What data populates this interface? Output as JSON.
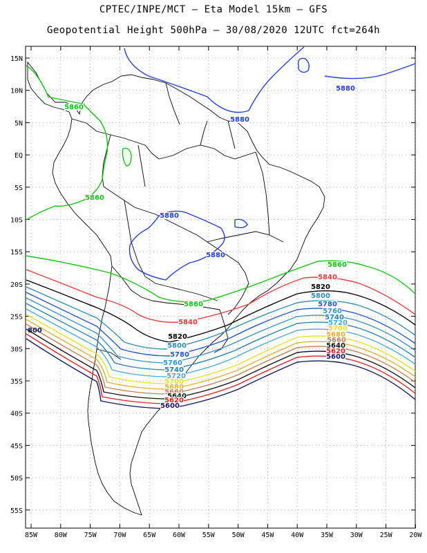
{
  "title_line1": "CPTEC/INPE/MCT –  Eta Model 15km – GFS",
  "title_line2": "Geopotential Height 500hPa – 30/08/2020 12UTC fct=264h",
  "lat_labels": [
    "15N",
    "10N",
    "5N",
    "EQ",
    "5S",
    "10S",
    "15S",
    "20S",
    "25S",
    "30S",
    "35S",
    "40S",
    "45S",
    "50S",
    "55S"
  ],
  "lon_labels": [
    "85W",
    "80W",
    "75W",
    "70W",
    "65W",
    "60W",
    "55W",
    "50W",
    "45W",
    "40W",
    "35W",
    "30W",
    "25W",
    "20W"
  ],
  "contour_labels": {
    "c5880": "5880",
    "c5860": "5860",
    "c5840": "5840",
    "c5820": "5820",
    "c5800": "5800",
    "c5780": "5780",
    "c5760": "5760",
    "c5740": "5740",
    "c5720": "5720",
    "c5700": "5700",
    "c5680": "5680",
    "c5660": "5660",
    "c5640": "5640",
    "c5620": "5620",
    "c5600": "5600",
    "c5800_left": "800"
  },
  "colors": {
    "c5880": "#1f3fd8",
    "c5860": "#11c411",
    "c5840": "#e83a3a",
    "c5820": "#000000",
    "c5800": "#2f8fb0",
    "c5780": "#2255d0",
    "c5760": "#3a8fc8",
    "c5740": "#2a7fb0",
    "c5720": "#4aa8d8",
    "c5700": "#e8e020",
    "c5680": "#e0b030",
    "c5660": "#c08050",
    "c5640": "#111111",
    "c5620": "#e02020",
    "c5600": "#101860"
  }
}
